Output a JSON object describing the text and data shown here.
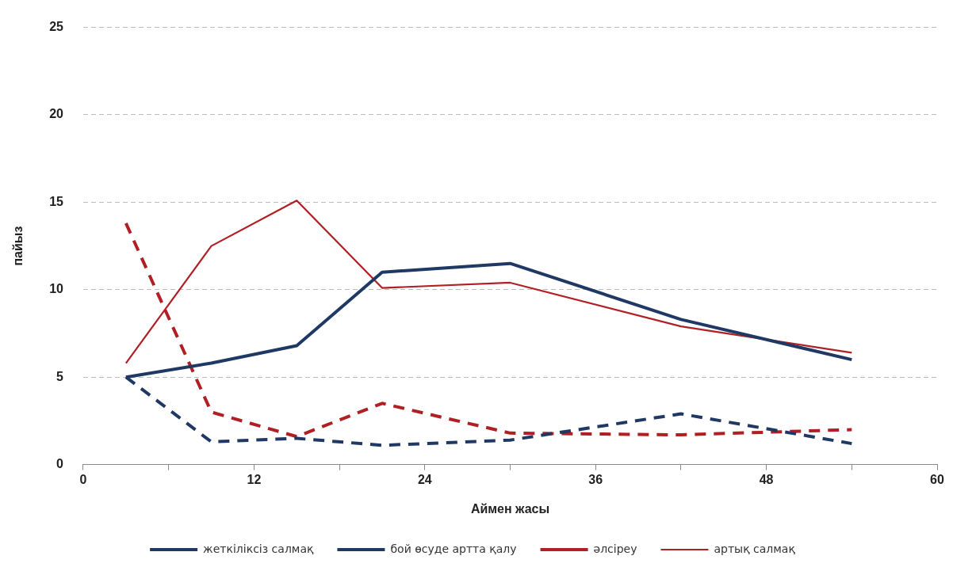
{
  "chart_data": {
    "type": "line",
    "xlabel": "Аймен жасы",
    "ylabel": "пайыз",
    "x": [
      3,
      9,
      15,
      21,
      30,
      42,
      54
    ],
    "series": [
      {
        "name": "жеткіліксіз салмақ",
        "color": "#1f3864",
        "line_style": "dashed",
        "values": [
          5,
          1.3,
          1.5,
          1.1,
          1.4,
          2.9,
          1.2
        ]
      },
      {
        "name": "бой өсуде артта қалу",
        "color": "#1f3864",
        "line_style": "solid",
        "values": [
          5,
          5.8,
          6.8,
          11,
          11.5,
          8.3,
          6
        ]
      },
      {
        "name": "әлсіреу",
        "color": "#b01f24",
        "line_style": "dashed",
        "values": [
          13.8,
          3,
          1.6,
          3.5,
          1.8,
          1.7,
          2
        ]
      },
      {
        "name": "артық салмақ",
        "color": "#b01f24",
        "line_style": "solid",
        "values": [
          5.8,
          12.5,
          15.1,
          10.1,
          10.4,
          7.9,
          6.4
        ]
      }
    ],
    "xlim": [
      0,
      60
    ],
    "xticks": [
      0,
      {
        "value": 6,
        "label": null
      },
      12,
      {
        "value": 18,
        "label": null
      },
      24,
      {
        "value": 30,
        "label": null
      },
      36,
      {
        "value": 42,
        "label": null
      },
      48,
      {
        "value": 54,
        "label": null
      },
      60
    ],
    "ylim": [
      0,
      25
    ],
    "yticks": [
      0,
      5,
      10,
      15,
      20,
      25
    ],
    "grid": "y",
    "legend": "bottom",
    "marker": "none"
  }
}
